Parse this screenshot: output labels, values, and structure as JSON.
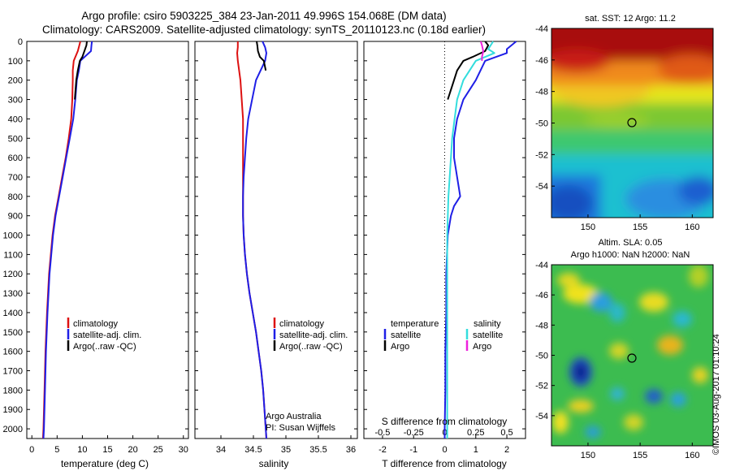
{
  "title": {
    "line1": "Argo profile: csiro 5903225_384 23-Jan-2011 49.996S 154.068E (DM data)",
    "line2": "Climatology: CARS2009. Satellite-adjusted climatology: synTS_20110123.nc (0.18d earlier)"
  },
  "side_text": "©IMOS 03-Aug-2017 01:10:24",
  "colors": {
    "climatology": "#dd1111",
    "satellite": "#1f1fe6",
    "argo": "#000000",
    "sat_salinity": "#33dddd",
    "argo_salinity": "#ee22dd"
  },
  "panels": {
    "temperature": {
      "xlabel": "temperature (deg C)",
      "legend": [
        "climatology",
        "satellite-adj. clim.",
        "Argo(..raw -QC)"
      ]
    },
    "salinity": {
      "xlabel": "salinity",
      "legend": [
        "climatology",
        "satellite-adj. clim.",
        "Argo(..raw -QC)"
      ],
      "note1": "Argo Australia",
      "note2": "PI: Susan Wijffels"
    },
    "difference": {
      "xlabel": "T difference from climatology",
      "xlabel_top": "S difference from climatology",
      "legend_temp_header": "temperature",
      "legend_sal_header": "salinity",
      "legend_temp": [
        "satellite",
        "Argo"
      ],
      "legend_sal": [
        "satellite",
        "Argo"
      ]
    }
  },
  "maps": {
    "sst": {
      "title": "sat. SST: 12 Argo: 11.2"
    },
    "sla": {
      "title1": "Altim. SLA: 0.05",
      "title2": "Argo h1000: NaN h2000: NaN"
    }
  },
  "chart_data": [
    {
      "type": "line",
      "name": "temperature profile",
      "xlabel": "temperature (deg C)",
      "ylim": [
        2050,
        0
      ],
      "xlim": [
        -1,
        31
      ],
      "xticks": [
        0,
        5,
        10,
        15,
        20,
        25,
        30
      ],
      "yticks": [
        0,
        100,
        200,
        300,
        400,
        500,
        600,
        700,
        800,
        900,
        1000,
        1100,
        1200,
        1300,
        1400,
        1500,
        1600,
        1700,
        1800,
        1900,
        2000
      ],
      "series": [
        {
          "name": "climatology",
          "color": "#dd1111",
          "depth": [
            0,
            20,
            50,
            100,
            150,
            200,
            300,
            400,
            500,
            600,
            700,
            800,
            900,
            1000,
            1200,
            1400,
            1600,
            1800,
            2000,
            2050
          ],
          "values": [
            9.6,
            9.4,
            9.1,
            8.3,
            8.1,
            8.1,
            8.0,
            7.8,
            7.3,
            6.7,
            6.0,
            5.3,
            4.6,
            4.1,
            3.4,
            3.0,
            2.7,
            2.5,
            2.3,
            2.2
          ]
        },
        {
          "name": "satellite-adj. clim.",
          "color": "#1f1fe6",
          "depth": [
            0,
            20,
            50,
            100,
            150,
            200,
            300,
            400,
            500,
            600,
            700,
            800,
            900,
            1000,
            1200,
            1400,
            1600,
            1800,
            2000,
            2050
          ],
          "values": [
            11.9,
            11.8,
            11.7,
            9.6,
            9.3,
            8.9,
            8.6,
            8.2,
            7.5,
            6.8,
            6.1,
            5.4,
            4.7,
            4.2,
            3.5,
            3.1,
            2.8,
            2.6,
            2.4,
            2.3
          ]
        },
        {
          "name": "Argo(..raw -QC)",
          "color": "#000000",
          "depth": [
            0,
            20,
            50,
            80,
            100,
            150,
            200,
            300
          ],
          "values": [
            10.9,
            10.8,
            10.4,
            10.0,
            9.5,
            9.1,
            8.8,
            8.5
          ]
        }
      ]
    },
    {
      "type": "line",
      "name": "salinity profile",
      "xlabel": "salinity",
      "ylim": [
        2050,
        0
      ],
      "xlim": [
        33.6,
        36.1
      ],
      "xticks": [
        34,
        34.5,
        35,
        35.5,
        36
      ],
      "series": [
        {
          "name": "climatology",
          "color": "#dd1111",
          "depth": [
            0,
            30,
            60,
            100,
            200,
            300,
            400,
            500,
            600,
            700,
            800,
            900,
            1000,
            1100,
            1200,
            1300,
            1400,
            1500,
            1600,
            1700,
            1800,
            1900,
            2000,
            2050
          ],
          "values": [
            34.26,
            34.26,
            34.25,
            34.26,
            34.3,
            34.32,
            34.34,
            34.34,
            34.34,
            34.34,
            34.34,
            34.34,
            34.35,
            34.37,
            34.4,
            34.44,
            34.49,
            34.54,
            34.58,
            34.62,
            34.65,
            34.67,
            34.69,
            34.7
          ]
        },
        {
          "name": "satellite-adj. clim.",
          "color": "#1f1fe6",
          "depth": [
            0,
            30,
            60,
            100,
            200,
            300,
            400,
            500,
            600,
            700,
            800,
            900,
            1000,
            1100,
            1200,
            1300,
            1400,
            1500,
            1600,
            1700,
            1800,
            1900,
            2000,
            2050
          ],
          "values": [
            34.64,
            34.68,
            34.7,
            34.68,
            34.54,
            34.48,
            34.42,
            34.39,
            34.37,
            34.35,
            34.34,
            34.34,
            34.35,
            34.37,
            34.4,
            34.44,
            34.49,
            34.54,
            34.58,
            34.62,
            34.65,
            34.67,
            34.69,
            34.7
          ]
        },
        {
          "name": "Argo(..raw -QC)",
          "color": "#000000",
          "depth": [
            0,
            20,
            50,
            80,
            100,
            150
          ],
          "values": [
            34.55,
            34.56,
            34.57,
            34.6,
            34.66,
            34.69
          ]
        }
      ]
    },
    {
      "type": "line",
      "name": "difference from climatology",
      "xlabel": "T difference from climatology",
      "xlabel_top": "S difference from climatology",
      "ylim": [
        2050,
        0
      ],
      "xlim": [
        -2.6,
        2.6
      ],
      "xticks": [
        -2,
        -1,
        0,
        1,
        2
      ],
      "xticks_top": [
        -0.5,
        -0.25,
        0,
        0.25,
        0.5
      ],
      "series": [
        {
          "name": "temperature satellite",
          "color": "#1f1fe6",
          "depth": [
            0,
            40,
            60,
            100,
            200,
            300,
            400,
            500,
            600,
            700,
            800,
            850,
            900,
            1000,
            1200,
            1400,
            1600,
            1800,
            2000,
            2050
          ],
          "values": [
            2.3,
            2.0,
            2.0,
            1.3,
            1.0,
            0.6,
            0.4,
            0.3,
            0.3,
            0.4,
            0.5,
            0.3,
            0.2,
            0.1,
            0.05,
            0.05,
            0.02,
            0.02,
            0.0,
            0.0
          ]
        },
        {
          "name": "temperature Argo",
          "color": "#000000",
          "depth": [
            0,
            20,
            50,
            80,
            100,
            150,
            200,
            300
          ],
          "values": [
            1.3,
            1.4,
            1.3,
            0.9,
            0.6,
            0.4,
            0.3,
            0.1
          ]
        },
        {
          "name": "salinity satellite",
          "color": "#33dddd",
          "depth": [
            0,
            40,
            60,
            100,
            200,
            300,
            400,
            500,
            600,
            800,
            1000,
            1200,
            1400,
            1600,
            1800,
            2000,
            2050
          ],
          "values": [
            0.39,
            0.35,
            0.4,
            0.25,
            0.15,
            0.1,
            0.08,
            0.06,
            0.05,
            0.03,
            0.02,
            0.02,
            0.02,
            0.02,
            0.02,
            0.02,
            0.02
          ]
        },
        {
          "name": "salinity Argo",
          "color": "#ee22dd",
          "depth": [
            0,
            20,
            50,
            80,
            100
          ],
          "values": [
            0.29,
            0.3,
            0.31,
            0.3,
            0.3
          ]
        }
      ]
    },
    {
      "type": "heatmap",
      "name": "sat. SST map",
      "title": "sat. SST: 12 Argo: 11.2",
      "xlim": [
        146.5,
        162
      ],
      "ylim": [
        -56,
        -44
      ],
      "xticks": [
        150,
        155,
        160
      ],
      "yticks": [
        -44,
        -46,
        -48,
        -50,
        -52,
        -54
      ],
      "argo_position": [
        154.068,
        -49.996
      ]
    },
    {
      "type": "heatmap",
      "name": "altimetry SLA map",
      "title": "Altim. SLA: 0.05 / Argo h1000: NaN h2000: NaN",
      "xlim": [
        146.5,
        162
      ],
      "ylim": [
        -56,
        -44
      ],
      "xticks": [
        150,
        155,
        160
      ],
      "yticks": [
        -44,
        -46,
        -48,
        -50,
        -52,
        -54
      ],
      "argo_position": [
        154.068,
        -49.996
      ]
    }
  ]
}
